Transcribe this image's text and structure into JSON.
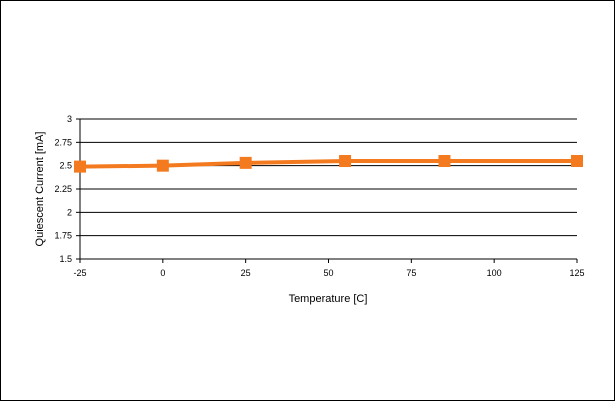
{
  "chart_data": {
    "type": "line",
    "title": "",
    "xlabel": "Temperature [C]",
    "ylabel": "Quiescent Current [mA]",
    "ylim": [
      1.5,
      3
    ],
    "yticks": [
      "1.5",
      "1.75",
      "2",
      "2.25",
      "2.5",
      "2.75",
      "3"
    ],
    "x_tick_labels": [
      "-25",
      "0",
      "25",
      "50",
      "75",
      "100",
      "125"
    ],
    "grid": true,
    "legend": "none",
    "series": [
      {
        "color": "#f47a20",
        "marker": "square",
        "x": [
          -25,
          0,
          25,
          55,
          85,
          125
        ],
        "y": [
          2.49,
          2.5,
          2.53,
          2.55,
          2.55,
          2.55
        ]
      }
    ]
  }
}
